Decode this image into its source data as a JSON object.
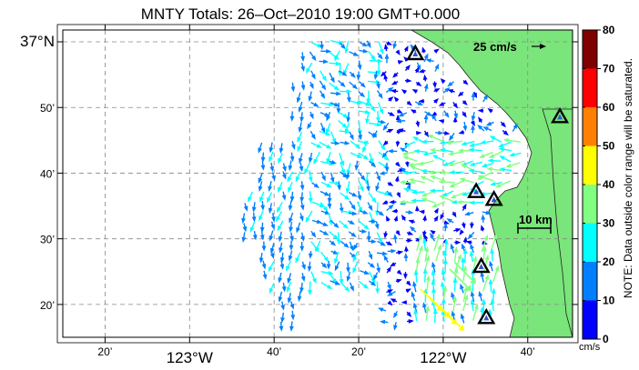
{
  "title": "MNTY Totals: 26–Oct–2010 19:00 GMT+0.000",
  "lat_labels": [
    {
      "text": "37°N",
      "lat": 37.0,
      "major": true
    },
    {
      "text": "50’",
      "lat": 36.8333,
      "major": false
    },
    {
      "text": "40’",
      "lat": 36.6667,
      "major": false
    },
    {
      "text": "30’",
      "lat": 36.5,
      "major": false
    },
    {
      "text": "20’",
      "lat": 36.3333,
      "major": false
    }
  ],
  "lon_labels": [
    {
      "text": "20’",
      "lon": -123.3333,
      "major": false
    },
    {
      "text": "123°W",
      "lon": -123.0,
      "major": true
    },
    {
      "text": "40’",
      "lon": -122.6667,
      "major": false
    },
    {
      "text": "20’",
      "lon": -122.3333,
      "major": false
    },
    {
      "text": "122°W",
      "lon": -122.0,
      "major": true
    },
    {
      "text": "40’",
      "lon": -121.6667,
      "major": false
    }
  ],
  "scale_vector_label": "25 cm/s",
  "distance_scale_label": "10 km",
  "colorbar": {
    "ticks": [
      "0",
      "10",
      "20",
      "30",
      "40",
      "50",
      "60",
      "70",
      "80"
    ],
    "unit": "cm/s",
    "note": "NOTE: Data outside color range will be saturated.",
    "colors": [
      "#0000ff",
      "#0080ff",
      "#00ffff",
      "#80ff80",
      "#ffff00",
      "#ff8000",
      "#ff0000",
      "#800000"
    ]
  },
  "land_color": "#7ae57a",
  "stations": [
    {
      "lon": -122.11,
      "lat": 36.97
    },
    {
      "lon": -121.54,
      "lat": 36.81
    },
    {
      "lon": -121.87,
      "lat": 36.62
    },
    {
      "lon": -121.8,
      "lat": 36.6
    },
    {
      "lon": -121.85,
      "lat": 36.43
    },
    {
      "lon": -121.83,
      "lat": 36.3
    }
  ]
}
